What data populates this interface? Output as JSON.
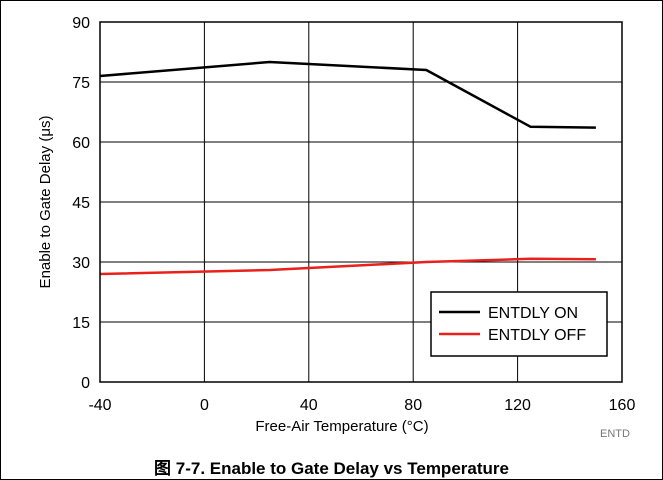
{
  "chart_data": {
    "type": "line",
    "caption": "图 7-7. Enable to Gate Delay vs Temperature",
    "xlabel": "Free-Air Temperature (°C)",
    "ylabel": "Enable to Gate Delay (μs)",
    "xlim": [
      -40,
      160
    ],
    "ylim": [
      0,
      90
    ],
    "xticks": [
      "-40",
      "0",
      "40",
      "80",
      "120",
      "160"
    ],
    "yticks": [
      "0",
      "15",
      "30",
      "45",
      "60",
      "75",
      "90"
    ],
    "grid": true,
    "legend_position": "bottom-right",
    "series": [
      {
        "name": "ENTDLY ON",
        "color": "#000000",
        "x": [
          -40,
          25,
          85,
          125,
          150
        ],
        "y": [
          76.5,
          80,
          78,
          63.8,
          63.6
        ]
      },
      {
        "name": "ENTDLY OFF",
        "color": "#e8211c",
        "x": [
          -40,
          25,
          85,
          125,
          150
        ],
        "y": [
          27,
          28,
          30,
          30.8,
          30.7
        ]
      }
    ],
    "source_tag": "ENTD"
  }
}
